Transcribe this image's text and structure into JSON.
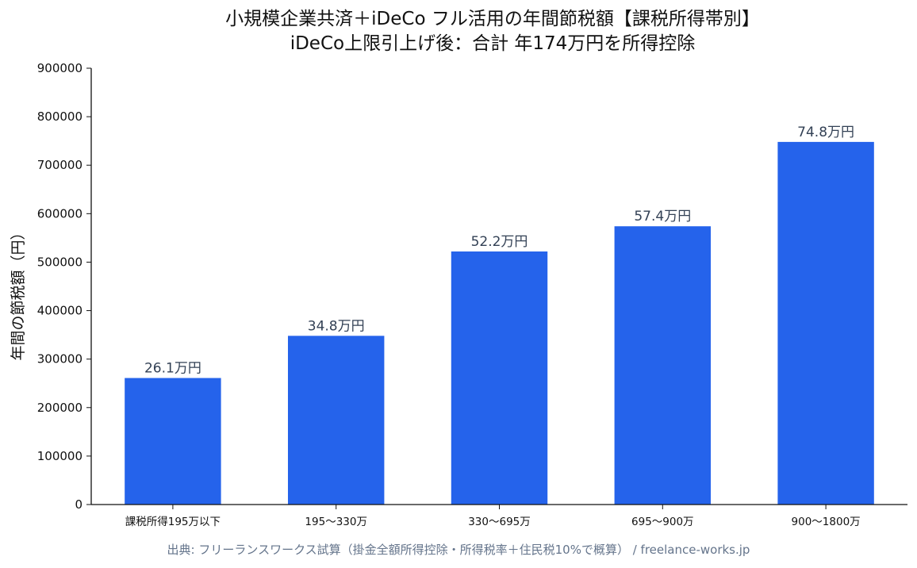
{
  "chart_data": {
    "type": "bar",
    "title": "小規模企業共済＋iDeCo フル活用の年間節税額【課税所得帯別】",
    "subtitle": "iDeCo上限引上げ後：合計 年174万円を所得控除",
    "ylabel": "年間の節税額（円）",
    "xlabel": "",
    "categories": [
      "課税所得195万以下",
      "195〜330万",
      "330〜695万",
      "695〜900万",
      "900〜1800万"
    ],
    "values": [
      261000,
      348000,
      522000,
      574000,
      748000
    ],
    "data_labels": [
      "26.1万円",
      "34.8万円",
      "52.2万円",
      "57.4万円",
      "74.8万円"
    ],
    "ylim": [
      0,
      900000
    ],
    "yticks": [
      0,
      100000,
      200000,
      300000,
      400000,
      500000,
      600000,
      700000,
      800000,
      900000
    ],
    "grid": false,
    "bar_color": "#2563eb"
  },
  "source_note": "出典: フリーランスワークス試算（掛金全額所得控除・所得税率＋住民税10%で概算） / freelance-works.jp"
}
